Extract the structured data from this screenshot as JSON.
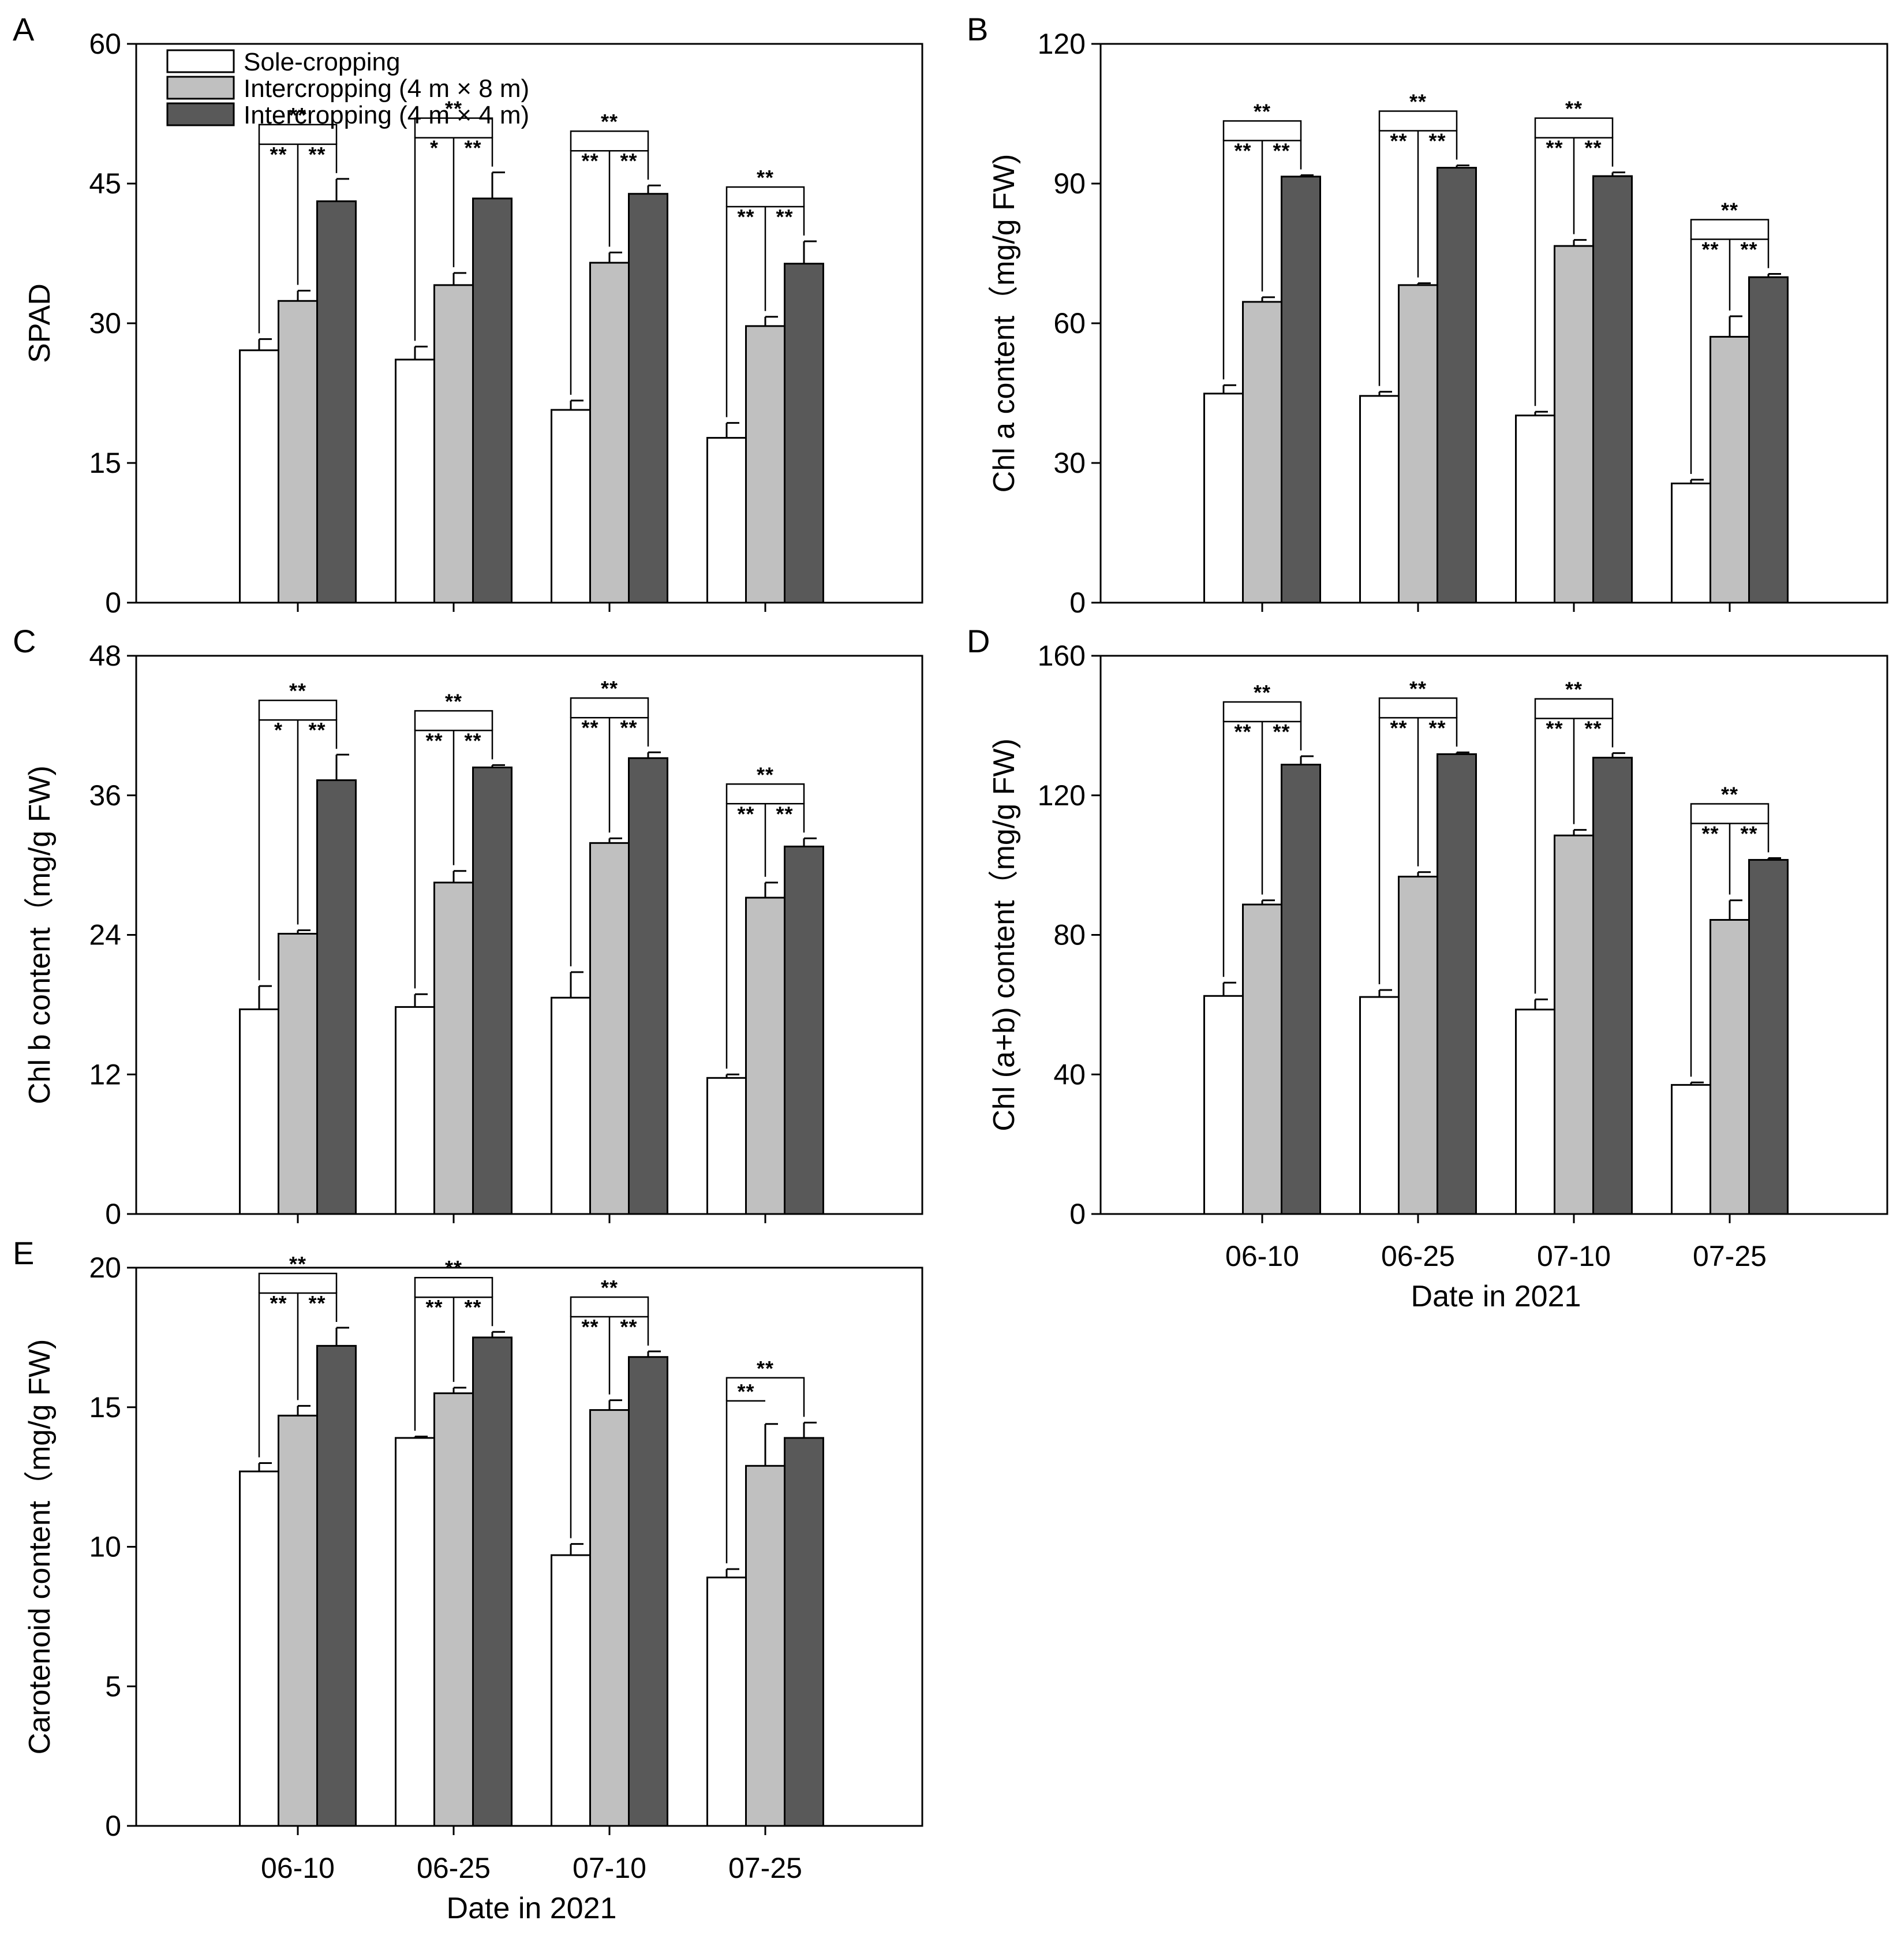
{
  "series_styles": [
    {
      "name": "Sole-cropping",
      "color": "#ffffff"
    },
    {
      "name": "Intercropping (4 m × 8 m)",
      "color": "#c0c0c0"
    },
    {
      "name": "Intercropping (4 m × 4 m)",
      "color": "#595959"
    }
  ],
  "chart_data": [
    {
      "panel": "A",
      "type": "bar",
      "ylabel": "SPAD",
      "xlabel": "",
      "ylim": [
        0,
        60
      ],
      "yticks": [
        0,
        15,
        30,
        45,
        60
      ],
      "categories": [
        "06-10",
        "06-25",
        "07-10",
        "07-25"
      ],
      "show_xtick_labels": false,
      "series": [
        {
          "name": "Sole-cropping",
          "values": [
            27.1,
            26.1,
            20.7,
            17.7
          ],
          "errors": [
            1.2,
            1.4,
            1.0,
            1.6
          ]
        },
        {
          "name": "Intercropping (4 m × 8 m)",
          "values": [
            32.4,
            34.1,
            36.5,
            29.7
          ],
          "errors": [
            1.1,
            1.3,
            1.1,
            1.0
          ]
        },
        {
          "name": "Intercropping (4 m × 4 m)",
          "values": [
            43.1,
            43.4,
            43.9,
            36.4
          ],
          "errors": [
            2.4,
            2.8,
            0.9,
            2.4
          ]
        }
      ],
      "significance": [
        {
          "top": "**",
          "left": "**",
          "right": "**"
        },
        {
          "top": "**",
          "left": "*",
          "right": "**"
        },
        {
          "top": "**",
          "left": "**",
          "right": "**"
        },
        {
          "top": "**",
          "left": "**",
          "right": "**"
        }
      ]
    },
    {
      "panel": "B",
      "type": "bar",
      "ylabel": "Chl a content（mg/g FW)",
      "xlabel": "",
      "ylim": [
        0,
        120
      ],
      "yticks": [
        0,
        30,
        60,
        90,
        120
      ],
      "categories": [
        "06-10",
        "06-25",
        "07-10",
        "07-25"
      ],
      "show_xtick_labels": false,
      "series": [
        {
          "name": "Sole-cropping",
          "values": [
            44.9,
            44.4,
            40.2,
            25.6
          ],
          "errors": [
            1.8,
            0.9,
            0.8,
            0.8
          ]
        },
        {
          "name": "Intercropping (4 m × 8 m)",
          "values": [
            64.6,
            68.2,
            76.6,
            57.1
          ],
          "errors": [
            1.0,
            0.4,
            1.3,
            4.4
          ]
        },
        {
          "name": "Intercropping (4 m × 4 m)",
          "values": [
            91.5,
            93.4,
            91.6,
            69.9
          ],
          "errors": [
            0.3,
            0.5,
            0.8,
            0.7
          ]
        }
      ],
      "significance": [
        {
          "top": "**",
          "left": "**",
          "right": "**"
        },
        {
          "top": "**",
          "left": "**",
          "right": "**"
        },
        {
          "top": "**",
          "left": "**",
          "right": "**"
        },
        {
          "top": "**",
          "left": "**",
          "right": "**"
        }
      ]
    },
    {
      "panel": "C",
      "type": "bar",
      "ylabel": "Chl b content（mg/g FW)",
      "xlabel": "",
      "ylim": [
        0,
        48
      ],
      "yticks": [
        0,
        12,
        24,
        36,
        48
      ],
      "categories": [
        "06-10",
        "06-25",
        "07-10",
        "07-25"
      ],
      "show_xtick_labels": false,
      "series": [
        {
          "name": "Sole-cropping",
          "values": [
            17.6,
            17.8,
            18.6,
            11.7
          ],
          "errors": [
            2.0,
            1.1,
            2.2,
            0.3
          ]
        },
        {
          "name": "Intercropping (4 m × 8 m)",
          "values": [
            24.1,
            28.5,
            31.9,
            27.2
          ],
          "errors": [
            0.3,
            1.0,
            0.4,
            1.3
          ]
        },
        {
          "name": "Intercropping (4 m × 4 m)",
          "values": [
            37.3,
            38.4,
            39.2,
            31.6
          ],
          "errors": [
            2.2,
            0.2,
            0.5,
            0.7
          ]
        }
      ],
      "significance": [
        {
          "top": "**",
          "left": "*",
          "right": "**"
        },
        {
          "top": "**",
          "left": "**",
          "right": "**"
        },
        {
          "top": "**",
          "left": "**",
          "right": "**"
        },
        {
          "top": "**",
          "left": "**",
          "right": "**"
        }
      ]
    },
    {
      "panel": "D",
      "type": "bar",
      "ylabel": "Chl (a+b) content（mg/g FW)",
      "xlabel": "Date in 2021",
      "ylim": [
        0,
        160
      ],
      "yticks": [
        0,
        40,
        80,
        120,
        160
      ],
      "categories": [
        "06-10",
        "06-25",
        "07-10",
        "07-25"
      ],
      "show_xtick_labels": true,
      "series": [
        {
          "name": "Sole-cropping",
          "values": [
            62.5,
            62.2,
            58.6,
            37.0
          ],
          "errors": [
            3.8,
            2.0,
            2.9,
            0.7
          ]
        },
        {
          "name": "Intercropping (4 m × 8 m)",
          "values": [
            88.7,
            96.7,
            108.5,
            84.3
          ],
          "errors": [
            1.2,
            1.3,
            1.6,
            5.6
          ]
        },
        {
          "name": "Intercropping (4 m × 4 m)",
          "values": [
            128.8,
            131.8,
            130.8,
            101.5
          ],
          "errors": [
            2.4,
            0.5,
            1.3,
            0.5
          ]
        }
      ],
      "significance": [
        {
          "top": "**",
          "left": "**",
          "right": "**"
        },
        {
          "top": "**",
          "left": "**",
          "right": "**"
        },
        {
          "top": "**",
          "left": "**",
          "right": "**"
        },
        {
          "top": "**",
          "left": "**",
          "right": "**"
        }
      ]
    },
    {
      "panel": "E",
      "type": "bar",
      "ylabel": "Carotenoid content（mg/g FW)",
      "xlabel": "Date in 2021",
      "ylim": [
        0,
        20
      ],
      "yticks": [
        0,
        5,
        10,
        15,
        20
      ],
      "categories": [
        "06-10",
        "06-25",
        "07-10",
        "07-25"
      ],
      "show_xtick_labels": true,
      "series": [
        {
          "name": "Sole-cropping",
          "values": [
            12.7,
            13.9,
            9.7,
            8.9
          ],
          "errors": [
            0.3,
            0.05,
            0.4,
            0.3
          ]
        },
        {
          "name": "Intercropping (4 m × 8 m)",
          "values": [
            14.7,
            15.5,
            14.9,
            12.9
          ],
          "errors": [
            0.35,
            0.2,
            0.35,
            1.5
          ]
        },
        {
          "name": "Intercropping (4 m × 4 m)",
          "values": [
            17.2,
            17.5,
            16.8,
            13.9
          ],
          "errors": [
            0.65,
            0.2,
            0.2,
            0.55
          ]
        }
      ],
      "significance": [
        {
          "top": "**",
          "left": "**",
          "right": "**"
        },
        {
          "top": "**",
          "left": "**",
          "right": "**"
        },
        {
          "top": "**",
          "left": "**",
          "right": "**"
        },
        {
          "top": "**",
          "left": "**",
          "right": null
        }
      ]
    }
  ]
}
